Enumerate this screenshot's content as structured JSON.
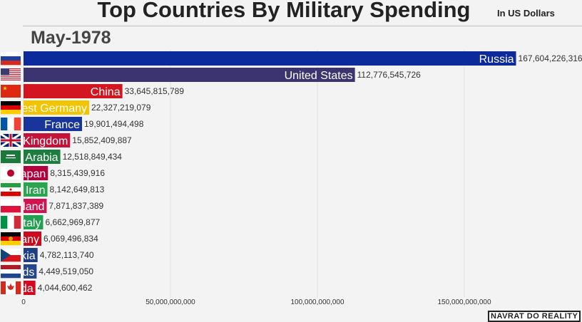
{
  "title": "Top Countries By Military Spending",
  "unit_label": "In US Dollars",
  "date": "May-1978",
  "watermark": "NAVRAT DO REALITY",
  "chart_data": {
    "type": "bar",
    "orientation": "horizontal",
    "title": "Top Countries By Military Spending",
    "xlim": [
      0,
      170000000000
    ],
    "grid": true,
    "xticks": [
      0,
      50000000000,
      100000000000,
      150000000000
    ],
    "xtick_labels": [
      "0",
      "50,000,000,000",
      "100,000,000,000",
      "150,000,000,000"
    ],
    "categories": [
      "Russia",
      "United States",
      "China",
      "West Germany",
      "France",
      "United Kingdom",
      "Saudi Arabia",
      "Japan",
      "Iran",
      "Poland",
      "Italy",
      "East Germany",
      "Czechoslovakia",
      "Netherlands",
      "Canada"
    ],
    "values": [
      167604226316,
      112776545726,
      33645815789,
      22327219079,
      19901494498,
      15852409887,
      12518849434,
      8315439916,
      8142649813,
      7871837389,
      6662969877,
      6069496834,
      4782113740,
      4449519050,
      4044600462
    ],
    "value_labels": [
      "167,604,226,316",
      "112,776,545,726",
      "33,645,815,789",
      "22,327,219,079",
      "19,901,494,498",
      "15,852,409,887",
      "12,518,849,434",
      "8,315,439,916",
      "8,142,649,813",
      "7,871,837,389",
      "6,662,969,877",
      "6,069,496,834",
      "4,782,113,740",
      "4,449,519,050",
      "4,044,600,462"
    ],
    "colors": [
      "#0d2a9c",
      "#3b3470",
      "#d2151e",
      "#f2c500",
      "#17359a",
      "#c5123a",
      "#1d7d40",
      "#b3003c",
      "#2aa44e",
      "#d0134e",
      "#21a052",
      "#cc0a1e",
      "#1d3f7e",
      "#23478a",
      "#d3071f"
    ],
    "flags": [
      "flag-russia",
      "flag-usa",
      "flag-china",
      "flag-west-germany",
      "flag-france",
      "flag-uk",
      "flag-saudi-arabia",
      "flag-japan",
      "flag-iran",
      "flag-poland",
      "flag-italy",
      "flag-east-germany",
      "flag-czechoslovakia",
      "flag-netherlands",
      "flag-canada"
    ]
  }
}
